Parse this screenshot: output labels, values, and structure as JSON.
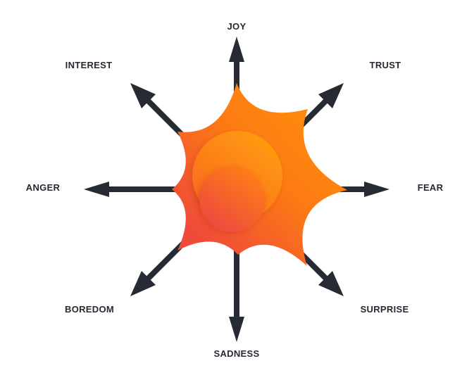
{
  "diagram": {
    "labels": {
      "joy": "JOY",
      "trust": "TRUST",
      "fear": "FEAR",
      "surprise": "SURPRISE",
      "sadness": "SADNESS",
      "boredom": "BOREDOM",
      "anger": "ANGER",
      "interest": "INTEREST"
    },
    "colors": {
      "arrow": "#262b33",
      "label": "#262b33",
      "star_light": "#ff8c0a",
      "star_dark": "#f04a3a",
      "circle_light": "#ff9a10",
      "circle_dark": "#ee4a3e",
      "background": "#ffffff"
    }
  }
}
